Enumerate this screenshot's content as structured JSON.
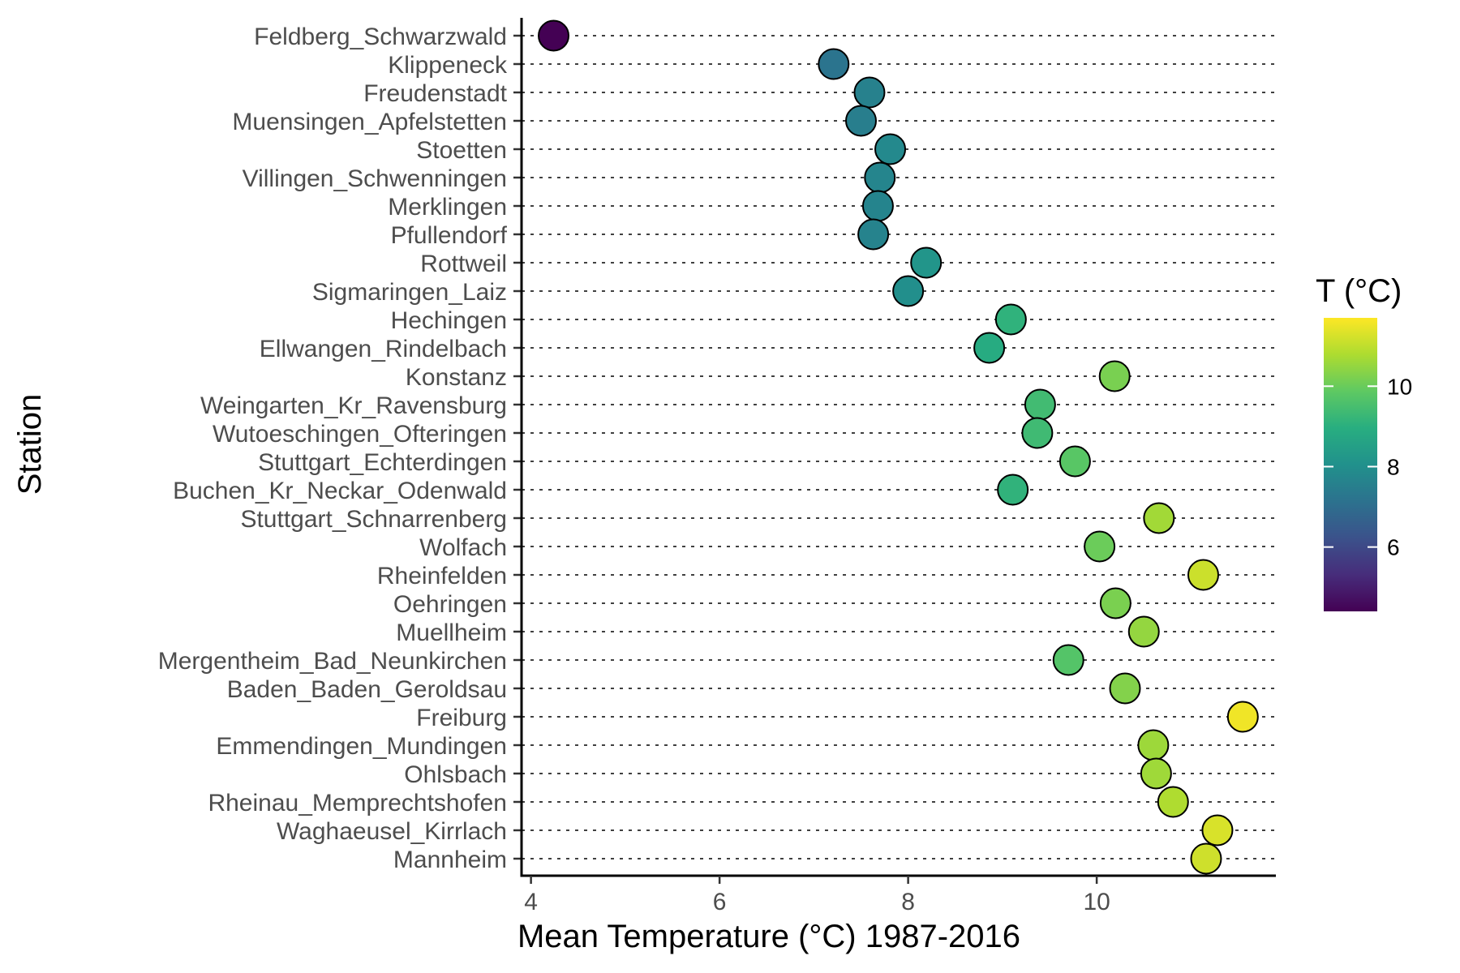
{
  "chart_data": {
    "type": "scatter",
    "xlabel": "Mean Temperature (°C) 1987-2016",
    "ylabel": "Station",
    "xlim": [
      3.9,
      11.9
    ],
    "xticks": [
      4,
      6,
      8,
      10
    ],
    "grid": "dotted horizontal lines per station",
    "legend": {
      "title": "T (°C)",
      "position": "right",
      "type": "colorbar",
      "colormap": "viridis",
      "range": [
        4.4,
        11.7
      ],
      "ticks": [
        6,
        8,
        10
      ]
    },
    "categories": [
      "Feldberg_Schwarzwald",
      "Klippeneck",
      "Freudenstadt",
      "Muensingen_Apfelstetten",
      "Stoetten",
      "Villingen_Schwenningen",
      "Merklingen",
      "Pfullendorf",
      "Rottweil",
      "Sigmaringen_Laiz",
      "Hechingen",
      "Ellwangen_Rindelbach",
      "Konstanz",
      "Weingarten_Kr_Ravensburg",
      "Wutoeschingen_Ofteringen",
      "Stuttgart_Echterdingen",
      "Buchen_Kr_Neckar_Odenwald",
      "Stuttgart_Schnarrenberg",
      "Wolfach",
      "Rheinfelden",
      "Oehringen",
      "Muellheim",
      "Mergentheim_Bad_Neunkirchen",
      "Baden_Baden_Geroldsau",
      "Freiburg",
      "Emmendingen_Mundingen",
      "Ohlsbach",
      "Rheinau_Memprechtshofen",
      "Waghaeusel_Kirrlach",
      "Mannheim"
    ],
    "values": [
      4.24,
      7.21,
      7.59,
      7.5,
      7.81,
      7.7,
      7.68,
      7.63,
      8.19,
      8.0,
      9.09,
      8.86,
      10.19,
      9.4,
      9.37,
      9.77,
      9.11,
      10.66,
      10.03,
      11.13,
      10.2,
      10.5,
      9.7,
      10.3,
      11.55,
      10.6,
      10.63,
      10.81,
      11.28,
      11.16
    ]
  }
}
